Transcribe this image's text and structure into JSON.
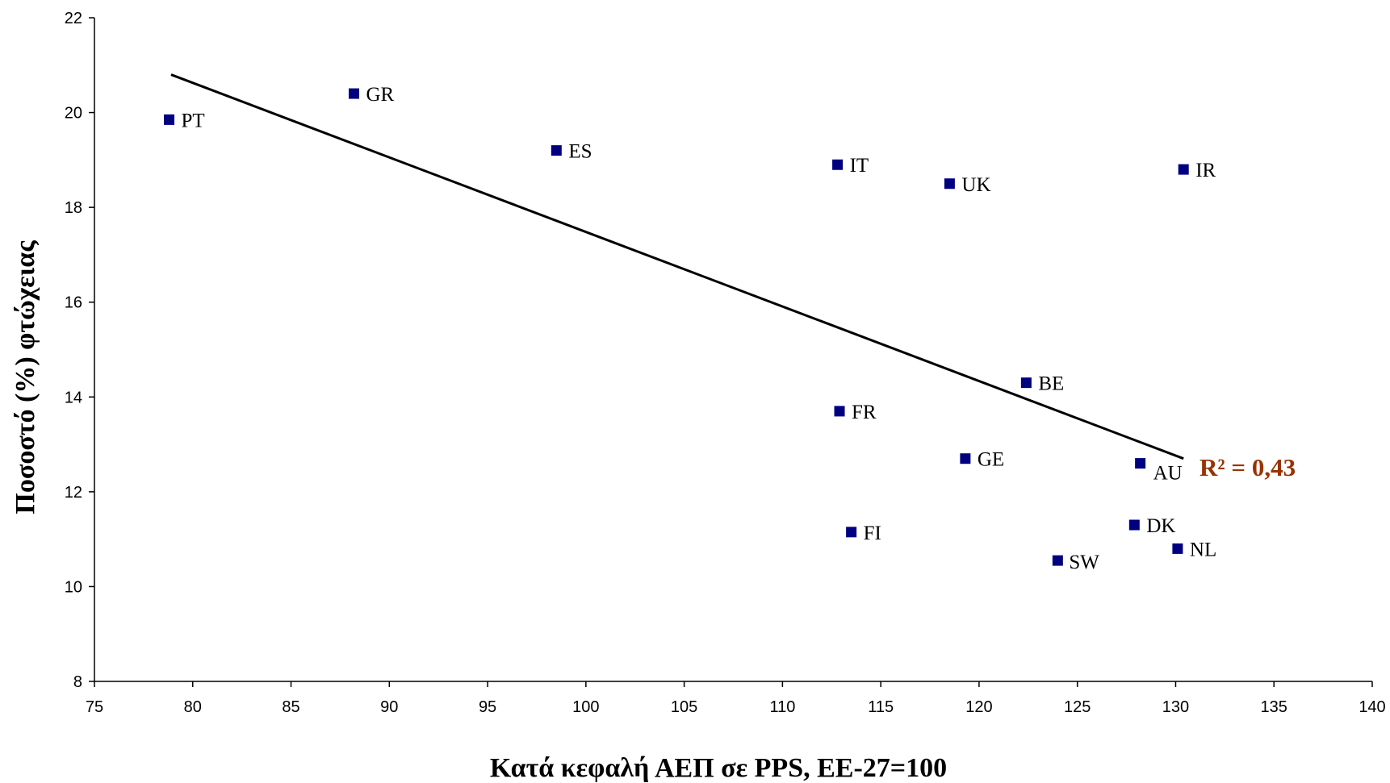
{
  "chart_data": {
    "type": "scatter",
    "xlabel": "Κατά κεφαλή ΑΕΠ σε PPS, ΕΕ-27=100",
    "ylabel": "Ποσοστό (%) φτώχειας",
    "xlim": [
      75,
      140
    ],
    "ylim": [
      8,
      22
    ],
    "xticks": [
      "75",
      "80",
      "85",
      "90",
      "95",
      "100",
      "105",
      "110",
      "115",
      "120",
      "125",
      "130",
      "135",
      "140"
    ],
    "yticks": [
      "8",
      "10",
      "12",
      "14",
      "16",
      "18",
      "20",
      "22"
    ],
    "grid": false,
    "marker_color": "#000080",
    "points": [
      {
        "label": "PT",
        "x": 78.8,
        "y": 19.85
      },
      {
        "label": "GR",
        "x": 88.2,
        "y": 20.4
      },
      {
        "label": "ES",
        "x": 98.5,
        "y": 19.2
      },
      {
        "label": "IT",
        "x": 112.8,
        "y": 18.9
      },
      {
        "label": "UK",
        "x": 118.5,
        "y": 18.5
      },
      {
        "label": "IR",
        "x": 130.4,
        "y": 18.8
      },
      {
        "label": "BE",
        "x": 122.4,
        "y": 14.3
      },
      {
        "label": "FR",
        "x": 112.9,
        "y": 13.7
      },
      {
        "label": "GE",
        "x": 119.3,
        "y": 12.7
      },
      {
        "label": "AU",
        "x": 128.2,
        "y": 12.6
      },
      {
        "label": "FI",
        "x": 113.5,
        "y": 11.15
      },
      {
        "label": "DK",
        "x": 127.9,
        "y": 11.3
      },
      {
        "label": "NL",
        "x": 130.1,
        "y": 10.8
      },
      {
        "label": "SW",
        "x": 124.0,
        "y": 10.55
      }
    ],
    "trendline": {
      "x_start": 78.9,
      "y_start": 20.8,
      "x_end": 130.4,
      "y_end": 12.7,
      "color": "#000000"
    },
    "annotation": {
      "text": "R² = 0,43",
      "color": "#993300"
    }
  }
}
